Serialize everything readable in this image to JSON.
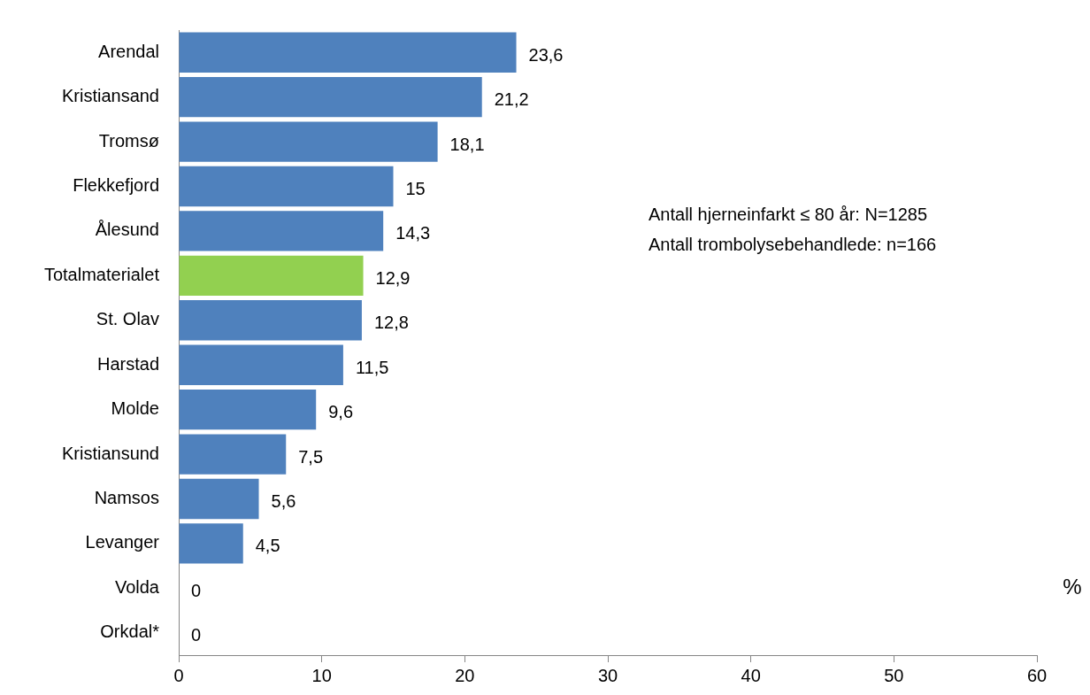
{
  "chart_data": {
    "type": "bar",
    "orientation": "horizontal",
    "categories": [
      "Arendal",
      "Kristiansand",
      "Tromsø",
      "Flekkefjord",
      "Ålesund",
      "Totalmaterialet",
      "St. Olav",
      "Harstad",
      "Molde",
      "Kristiansund",
      "Namsos",
      "Levanger",
      "Volda",
      "Orkdal*"
    ],
    "values": [
      23.6,
      21.2,
      18.1,
      15,
      14.3,
      12.9,
      12.8,
      11.5,
      9.6,
      7.5,
      5.6,
      4.5,
      0,
      0
    ],
    "colors": [
      "#4f81bd",
      "#4f81bd",
      "#4f81bd",
      "#4f81bd",
      "#4f81bd",
      "#92d050",
      "#4f81bd",
      "#4f81bd",
      "#4f81bd",
      "#4f81bd",
      "#4f81bd",
      "#4f81bd",
      "#4f81bd",
      "#4f81bd"
    ],
    "value_labels": [
      "23,6",
      "21,2",
      "18,1",
      "15",
      "14,3",
      "12,9",
      "12,8",
      "11,5",
      "9,6",
      "7,5",
      "5,6",
      "4,5",
      "0",
      "0"
    ],
    "xlabel": "%",
    "xlim": [
      0,
      60
    ],
    "xticks": [
      0,
      10,
      20,
      30,
      40,
      50,
      60
    ],
    "grid": false,
    "legend": false,
    "annotations": [
      "Antall hjerneinfarkt ≤ 80 år: N=1285",
      "Antall trombolysebehandlede: n=166"
    ]
  }
}
